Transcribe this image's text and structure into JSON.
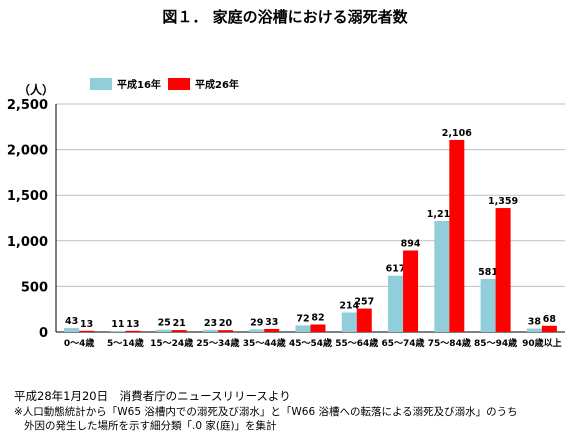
{
  "colors": {
    "series0": "#92cddc",
    "series1": "#ff0000"
  },
  "chart_data": {
    "type": "bar",
    "title": "図１． 家庭の浴槽における溺死者数",
    "ylabel": "（人）",
    "ylim": [
      0,
      2500
    ],
    "yticks": [
      "0",
      "500",
      "1,000",
      "1,500",
      "2,000",
      "2,500"
    ],
    "ytick_values": [
      0,
      500,
      1000,
      1500,
      2000,
      2500
    ],
    "categories": [
      "0～4歳",
      "5～14歳",
      "15～24歳",
      "25～34歳",
      "35～44歳",
      "45～54歳",
      "55～64歳",
      "65～74歳",
      "75～84歳",
      "85～94歳",
      "90歳以上"
    ],
    "series": [
      {
        "name": "平成16年",
        "values": [
          43,
          11,
          25,
          23,
          29,
          72,
          214,
          617,
          1217,
          581,
          38
        ],
        "labels": [
          "43",
          "11",
          "25",
          "23",
          "29",
          "72",
          "214",
          "617",
          "1,217",
          "581",
          "38"
        ]
      },
      {
        "name": "平成26年",
        "values": [
          13,
          13,
          21,
          20,
          33,
          82,
          257,
          894,
          2106,
          1359,
          68
        ],
        "labels": [
          "13",
          "13",
          "21",
          "20",
          "33",
          "82",
          "257",
          "894",
          "2,106",
          "1,359",
          "68"
        ]
      }
    ],
    "legend_position": "top-left",
    "grid": true
  },
  "footer": {
    "source": "平成28年1月20日　消費者庁のニュースリリースより",
    "note_line1": "※人口動態統計から「W65 浴槽内での溺死及び溺水」と「W66 浴槽への転落による溺死及び溺水」のうち",
    "note_line2": "外因の発生した場所を示す細分類「.0 家(庭)」を集計"
  }
}
